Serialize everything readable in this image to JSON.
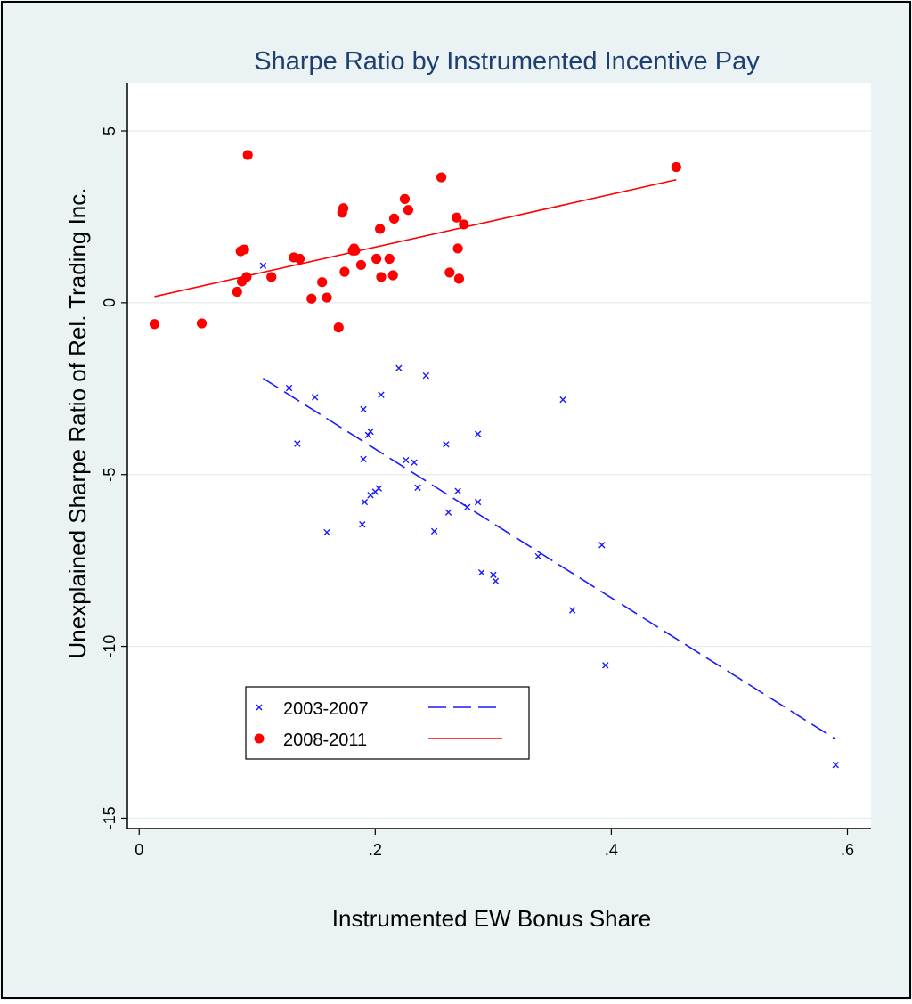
{
  "chart_data": {
    "type": "scatter",
    "title": "Sharpe Ratio by Instrumented Incentive Pay",
    "xlabel": "Instrumented EW Bonus Share",
    "ylabel": "Unexplained Sharpe Ratio of Rel. Trading Inc.",
    "xlim": [
      -0.01,
      0.62
    ],
    "ylim": [
      -15.3,
      6.4
    ],
    "x_ticks": [
      0,
      0.2,
      0.4,
      0.6
    ],
    "x_tick_labels": [
      "0",
      ".2",
      ".4",
      ".6"
    ],
    "y_ticks": [
      -15,
      -10,
      -5,
      0,
      5
    ],
    "y_tick_labels": [
      "-15",
      "-10",
      "-5",
      "0",
      "5"
    ],
    "grid": true,
    "legend_position": "lower-left",
    "colors": {
      "background": "#eaf2f3",
      "plot_bg": "#ffffff",
      "series_2003": "#1a1aff",
      "series_2008": "#ff0000",
      "text": "#000000",
      "title": "#1f3f73"
    },
    "series": [
      {
        "name": "2003-2007",
        "marker": "x",
        "color": "#1a1aff",
        "points": [
          [
            0.105,
            1.08
          ],
          [
            0.127,
            -2.48
          ],
          [
            0.134,
            -4.1
          ],
          [
            0.149,
            -2.75
          ],
          [
            0.159,
            -6.68
          ],
          [
            0.19,
            -3.1
          ],
          [
            0.19,
            -4.55
          ],
          [
            0.189,
            -6.45
          ],
          [
            0.191,
            -5.8
          ],
          [
            0.194,
            -3.85
          ],
          [
            0.196,
            -3.75
          ],
          [
            0.196,
            -5.6
          ],
          [
            0.2,
            -5.5
          ],
          [
            0.203,
            -5.4
          ],
          [
            0.205,
            -2.68
          ],
          [
            0.22,
            -1.9
          ],
          [
            0.226,
            -4.58
          ],
          [
            0.233,
            -4.65
          ],
          [
            0.236,
            -5.38
          ],
          [
            0.243,
            -2.12
          ],
          [
            0.25,
            -6.65
          ],
          [
            0.26,
            -4.12
          ],
          [
            0.262,
            -6.1
          ],
          [
            0.27,
            -5.48
          ],
          [
            0.278,
            -5.95
          ],
          [
            0.287,
            -5.8
          ],
          [
            0.287,
            -3.82
          ],
          [
            0.29,
            -7.85
          ],
          [
            0.3,
            -7.92
          ],
          [
            0.302,
            -8.1
          ],
          [
            0.338,
            -7.38
          ],
          [
            0.359,
            -2.82
          ],
          [
            0.367,
            -8.95
          ],
          [
            0.392,
            -7.05
          ],
          [
            0.395,
            -10.55
          ],
          [
            0.59,
            -13.45
          ]
        ],
        "fit": {
          "style": "dashed",
          "x": [
            0.105,
            0.59
          ],
          "y": [
            -2.2,
            -12.7
          ]
        }
      },
      {
        "name": "2008-2011",
        "marker": "circle",
        "color": "#ff0000",
        "points": [
          [
            0.013,
            -0.62
          ],
          [
            0.053,
            -0.6
          ],
          [
            0.083,
            0.32
          ],
          [
            0.086,
            1.5
          ],
          [
            0.087,
            0.62
          ],
          [
            0.089,
            1.55
          ],
          [
            0.091,
            0.75
          ],
          [
            0.092,
            4.3
          ],
          [
            0.112,
            0.75
          ],
          [
            0.131,
            1.32
          ],
          [
            0.136,
            1.28
          ],
          [
            0.146,
            0.12
          ],
          [
            0.155,
            0.6
          ],
          [
            0.159,
            0.15
          ],
          [
            0.169,
            -0.72
          ],
          [
            0.172,
            2.62
          ],
          [
            0.173,
            2.75
          ],
          [
            0.174,
            0.9
          ],
          [
            0.181,
            1.52
          ],
          [
            0.182,
            1.58
          ],
          [
            0.183,
            1.52
          ],
          [
            0.188,
            1.1
          ],
          [
            0.201,
            1.28
          ],
          [
            0.204,
            2.15
          ],
          [
            0.205,
            0.75
          ],
          [
            0.212,
            1.28
          ],
          [
            0.215,
            0.8
          ],
          [
            0.216,
            2.45
          ],
          [
            0.225,
            3.02
          ],
          [
            0.228,
            2.7
          ],
          [
            0.256,
            3.65
          ],
          [
            0.263,
            0.88
          ],
          [
            0.269,
            2.48
          ],
          [
            0.27,
            1.58
          ],
          [
            0.271,
            0.7
          ],
          [
            0.275,
            2.28
          ],
          [
            0.455,
            3.95
          ]
        ],
        "fit": {
          "style": "solid",
          "x": [
            0.013,
            0.455
          ],
          "y": [
            0.18,
            3.58
          ]
        }
      }
    ]
  }
}
